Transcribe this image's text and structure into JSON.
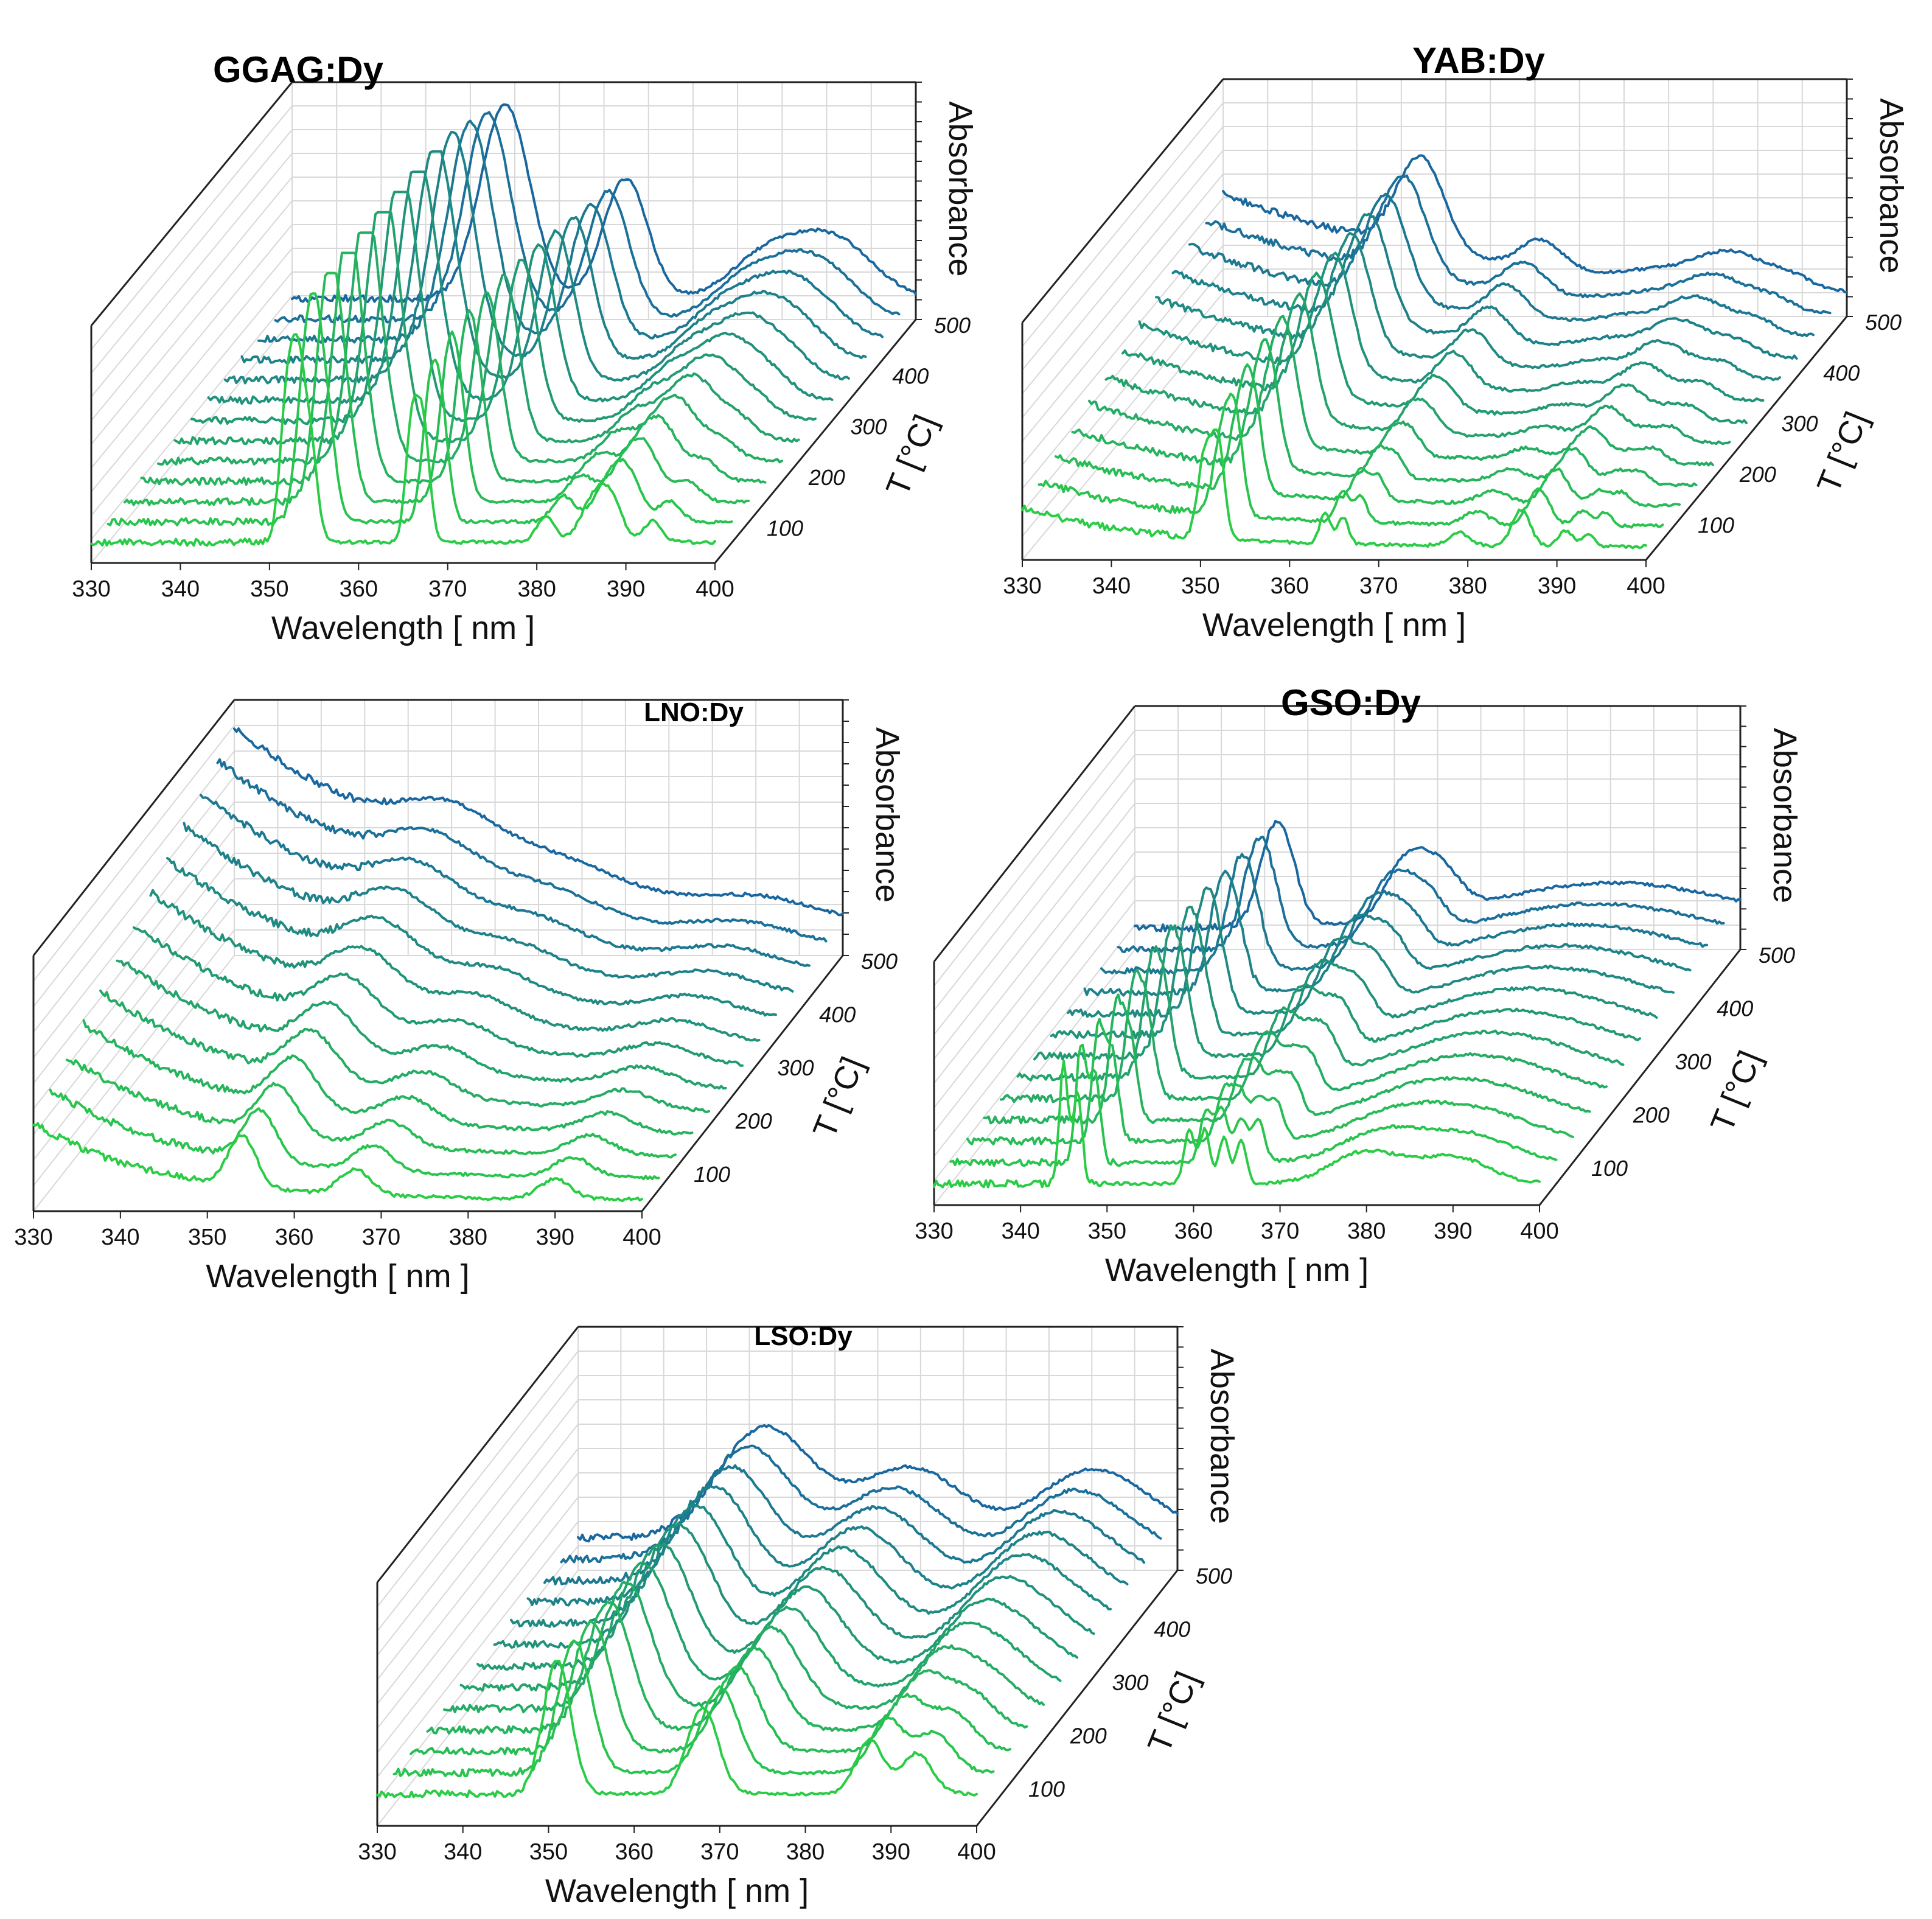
{
  "colors": {
    "low_T": "#2ee82e",
    "high_T": "#1030d0",
    "axis": "#222222",
    "grid": "#d8d8d8"
  },
  "chart_data": [
    {
      "type": "line",
      "title": "GGAG:Dy",
      "xlabel": "Wavelength [ nm ]",
      "ylabel": "Absorbance",
      "zlabel": "T [°C]",
      "xlim": [
        330,
        400
      ],
      "x_ticks": [
        "330",
        "340",
        "350",
        "360",
        "370",
        "380",
        "390",
        "400"
      ],
      "t_ticks": [
        "100",
        "200",
        "300",
        "400",
        "500"
      ],
      "temperatures": [
        20,
        60,
        100,
        140,
        180,
        220,
        260,
        300,
        340,
        380,
        420,
        460,
        500
      ],
      "baseline": 0.08,
      "peaks": [
        {
          "center": 352.0,
          "height": 0.55,
          "width": 0.8
        },
        {
          "center": 353.2,
          "height": 0.5,
          "width": 0.7
        },
        {
          "center": 354.5,
          "height": 0.4,
          "width": 0.8
        },
        {
          "center": 366.0,
          "height": 0.45,
          "width": 0.7
        },
        {
          "center": 367.3,
          "height": 0.42,
          "width": 0.7
        },
        {
          "center": 381.0,
          "height": 0.1,
          "width": 1.0
        },
        {
          "center": 386.5,
          "height": 0.17,
          "width": 1.5
        },
        {
          "center": 388.5,
          "height": 0.12,
          "width": 1.2
        },
        {
          "center": 393.0,
          "height": 0.08,
          "width": 1.0
        }
      ]
    },
    {
      "type": "line",
      "title": "YAB:Dy",
      "xlabel": "Wavelength [ nm ]",
      "ylabel": "Absorbance",
      "zlabel": "T [°C]",
      "xlim": [
        330,
        400
      ],
      "x_ticks": [
        "330",
        "340",
        "350",
        "360",
        "370",
        "380",
        "390",
        "400"
      ],
      "t_ticks": [
        "100",
        "200",
        "300",
        "400",
        "500"
      ],
      "temperatures": [
        20,
        60,
        100,
        140,
        180,
        220,
        260,
        300,
        340,
        380,
        420,
        460,
        500
      ],
      "baseline": 0.05,
      "edge_height": 0.3,
      "peaks": [
        {
          "center": 350.5,
          "height": 0.32,
          "width": 0.8
        },
        {
          "center": 352.0,
          "height": 0.35,
          "width": 0.7
        },
        {
          "center": 364.0,
          "height": 0.12,
          "width": 0.6
        },
        {
          "center": 366.0,
          "height": 0.1,
          "width": 0.6
        },
        {
          "center": 379.0,
          "height": 0.05,
          "width": 1.2
        },
        {
          "center": 386.0,
          "height": 0.14,
          "width": 1.0
        },
        {
          "center": 391.0,
          "height": 0.06,
          "width": 0.8
        },
        {
          "center": 393.5,
          "height": 0.05,
          "width": 0.6
        }
      ]
    },
    {
      "type": "line",
      "title": "LNO:Dy",
      "xlabel": "Wavelength [ nm ]",
      "ylabel": "Absorbance",
      "zlabel": "T [°C]",
      "xlim": [
        330,
        400
      ],
      "x_ticks": [
        "330",
        "340",
        "350",
        "360",
        "370",
        "380",
        "390",
        "400"
      ],
      "t_ticks": [
        "100",
        "200",
        "300",
        "400",
        "500"
      ],
      "temperatures": [
        20,
        60,
        100,
        140,
        180,
        220,
        260,
        300,
        340,
        380,
        420,
        460,
        500
      ],
      "baseline": 0.04,
      "edge_height": 0.55,
      "peaks": [
        {
          "center": 354.0,
          "height": 0.18,
          "width": 1.6
        },
        {
          "center": 367.0,
          "height": 0.09,
          "width": 1.8
        },
        {
          "center": 390.0,
          "height": 0.07,
          "width": 1.8
        }
      ]
    },
    {
      "type": "line",
      "title": "GSO:Dy",
      "xlabel": "Wavelength [ nm ]",
      "ylabel": "Absorbance",
      "zlabel": "T [°C]",
      "xlim": [
        330,
        400
      ],
      "x_ticks": [
        "330",
        "340",
        "350",
        "360",
        "370",
        "380",
        "390",
        "400"
      ],
      "t_ticks": [
        "100",
        "200",
        "300",
        "400",
        "500"
      ],
      "temperatures": [
        20,
        60,
        100,
        140,
        180,
        220,
        260,
        300,
        340,
        380,
        420,
        460,
        500
      ],
      "baseline": 0.08,
      "peaks": [
        {
          "center": 345.0,
          "height": 0.45,
          "width": 0.5
        },
        {
          "center": 346.6,
          "height": 0.35,
          "width": 0.5
        },
        {
          "center": 359.5,
          "height": 0.2,
          "width": 0.6
        },
        {
          "center": 361.3,
          "height": 0.2,
          "width": 0.6
        },
        {
          "center": 363.5,
          "height": 0.17,
          "width": 0.6
        },
        {
          "center": 365.5,
          "height": 0.16,
          "width": 0.6
        },
        {
          "center": 380.0,
          "height": 0.12,
          "width": 4.0
        },
        {
          "center": 390.0,
          "height": 0.1,
          "width": 4.0
        }
      ]
    },
    {
      "type": "line",
      "title": "LSO:Dy",
      "xlabel": "Wavelength [ nm ]",
      "ylabel": "Absorbance",
      "zlabel": "T [°C]",
      "xlim": [
        330,
        400
      ],
      "x_ticks": [
        "330",
        "340",
        "350",
        "360",
        "370",
        "380",
        "390",
        "400"
      ],
      "t_ticks": [
        "100",
        "200",
        "300",
        "400",
        "500"
      ],
      "temperatures": [
        20,
        60,
        100,
        140,
        180,
        220,
        260,
        300,
        340,
        380,
        420,
        460,
        500
      ],
      "baseline": 0.12,
      "peaks": [
        {
          "center": 351.0,
          "height": 0.5,
          "width": 1.6
        },
        {
          "center": 368.0,
          "height": 0.32,
          "width": 1.8
        },
        {
          "center": 387.5,
          "height": 0.2,
          "width": 1.6
        },
        {
          "center": 393.0,
          "height": 0.15,
          "width": 1.8
        }
      ]
    }
  ]
}
